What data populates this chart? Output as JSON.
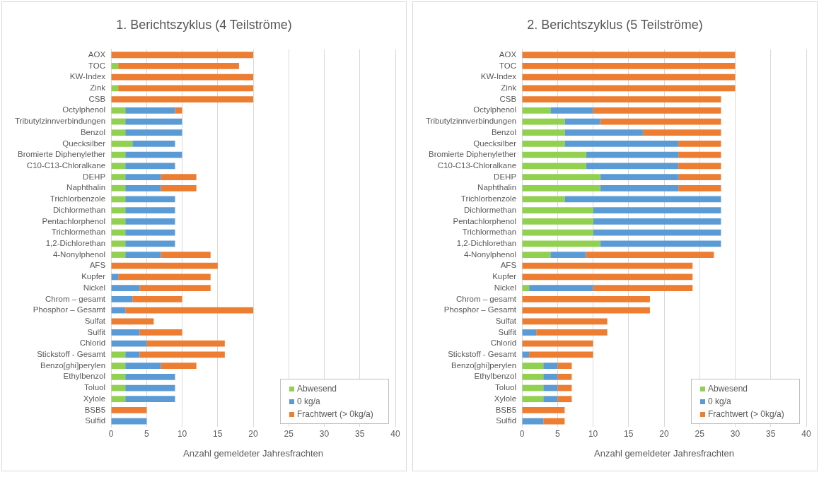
{
  "chart_data": [
    {
      "type": "bar",
      "title": "1. Berichtszyklus (4 Teilströme)",
      "xlabel": "Anzahl gemeldeter Jahresfrachten",
      "orientation": "horizontal",
      "stacked": true,
      "grid": "x",
      "legend": "bottom right",
      "xlim": [
        0,
        40
      ],
      "xticks": [
        0,
        5,
        10,
        15,
        20,
        25,
        30,
        35,
        40
      ],
      "categories": [
        "AOX",
        "TOC",
        "KW-Index",
        "Zink",
        "CSB",
        "Octylphenol",
        "Tributylzinnverbindungen",
        "Benzol",
        "Quecksilber",
        "Bromierte Diphenylether",
        "C10-C13-Chloralkane",
        "DEHP",
        "Naphthalin",
        "Trichlorbenzole",
        "Dichlormethan",
        "Pentachlorphenol",
        "Trichlormethan",
        "1,2-Dichlorethan",
        "4-Nonylphenol",
        "AFS",
        "Kupfer",
        "Nickel",
        "Chrom – gesamt",
        "Phosphor – Gesamt",
        "Sulfat",
        "Sulfit",
        "Chlorid",
        "Stickstoff - Gesamt",
        "Benzo[ghi]perylen",
        "Ethylbenzol",
        "Toluol",
        "Xylole",
        "BSB5",
        "Sulfid"
      ],
      "series": [
        {
          "name": "Abwesend",
          "color": "#92d050",
          "values": [
            0,
            1,
            0,
            1,
            0,
            2,
            2,
            2,
            3,
            2,
            2,
            2,
            2,
            2,
            2,
            2,
            2,
            2,
            2,
            0,
            0,
            0,
            0,
            0,
            0,
            0,
            0,
            2,
            2,
            2,
            2,
            2,
            0,
            0
          ]
        },
        {
          "name": "0 kg/a",
          "color": "#5b9bd5",
          "values": [
            0,
            0,
            0,
            0,
            0,
            7,
            8,
            8,
            6,
            8,
            7,
            5,
            5,
            7,
            7,
            7,
            7,
            7,
            5,
            0,
            1,
            4,
            3,
            2,
            0,
            4,
            5,
            2,
            5,
            7,
            7,
            7,
            0,
            5
          ]
        },
        {
          "name": "Frachtwert (> 0kg/a)",
          "color": "#ed7d31",
          "values": [
            20,
            17,
            20,
            19,
            20,
            1,
            0,
            0,
            0,
            0,
            0,
            5,
            5,
            0,
            0,
            0,
            0,
            0,
            7,
            15,
            13,
            10,
            7,
            18,
            6,
            6,
            11,
            12,
            5,
            0,
            0,
            0,
            5,
            0
          ]
        }
      ]
    },
    {
      "type": "bar",
      "title": "2. Berichtszyklus (5 Teilströme)",
      "xlabel": "Anzahl gemeldeter Jahresfrachten",
      "orientation": "horizontal",
      "stacked": true,
      "grid": "x",
      "legend": "bottom right",
      "xlim": [
        0,
        40
      ],
      "xticks": [
        0,
        5,
        10,
        15,
        20,
        25,
        30,
        35,
        40
      ],
      "categories": [
        "AOX",
        "TOC",
        "KW-Index",
        "Zink",
        "CSB",
        "Octylphenol",
        "Tributylzinnverbindungen",
        "Benzol",
        "Quecksilber",
        "Bromierte Diphenylether",
        "C10-C13-Chloralkane",
        "DEHP",
        "Naphthalin",
        "Trichlorbenzole",
        "Dichlormethan",
        "Pentachlorphenol",
        "Trichlormethan",
        "1,2-Dichlorethan",
        "4-Nonylphenol",
        "AFS",
        "Kupfer",
        "Nickel",
        "Chrom – gesamt",
        "Phosphor – Gesamt",
        "Sulfat",
        "Sulfit",
        "Chlorid",
        "Stickstoff - Gesamt",
        "Benzo[ghi]perylen",
        "Ethylbenzol",
        "Toluol",
        "Xylole",
        "BSB5",
        "Sulfid"
      ],
      "series": [
        {
          "name": "Abwesend",
          "color": "#92d050",
          "values": [
            0,
            0,
            0,
            0,
            0,
            4,
            6,
            6,
            6,
            9,
            9,
            11,
            11,
            6,
            10,
            10,
            10,
            11,
            4,
            0,
            0,
            1,
            0,
            0,
            0,
            0,
            0,
            0,
            3,
            3,
            3,
            3,
            0,
            0
          ]
        },
        {
          "name": "0 kg/a",
          "color": "#5b9bd5",
          "values": [
            0,
            0,
            0,
            0,
            0,
            6,
            5,
            11,
            16,
            13,
            13,
            11,
            11,
            22,
            18,
            18,
            18,
            17,
            5,
            0,
            0,
            9,
            0,
            0,
            0,
            2,
            0,
            1,
            2,
            2,
            2,
            2,
            0,
            3
          ]
        },
        {
          "name": "Frachtwert (> 0kg/a)",
          "color": "#ed7d31",
          "values": [
            30,
            30,
            30,
            30,
            28,
            18,
            17,
            11,
            6,
            6,
            6,
            6,
            6,
            0,
            0,
            0,
            0,
            0,
            18,
            24,
            24,
            14,
            18,
            18,
            12,
            10,
            10,
            9,
            2,
            2,
            2,
            2,
            6,
            3
          ]
        }
      ]
    }
  ]
}
